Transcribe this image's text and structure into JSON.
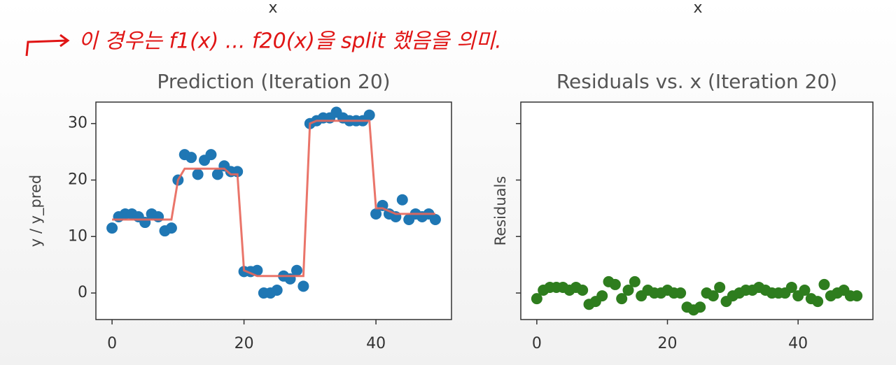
{
  "header": {
    "xlabels": [
      "x",
      "x"
    ]
  },
  "annotation": "이 경우는 f1(x) ... f20(x)을 split 했음을 의미.",
  "chart_data": [
    {
      "type": "scatter",
      "title": "Prediction (Iteration 20)",
      "ylabel": "y / y_pred",
      "x": [
        0,
        1,
        2,
        3,
        4,
        5,
        6,
        7,
        8,
        9,
        10,
        11,
        12,
        13,
        14,
        15,
        16,
        17,
        18,
        19,
        20,
        21,
        22,
        23,
        24,
        25,
        26,
        27,
        28,
        29,
        30,
        31,
        32,
        33,
        34,
        35,
        36,
        37,
        38,
        39,
        40,
        41,
        42,
        43,
        44,
        45,
        46,
        47,
        48,
        49
      ],
      "series": [
        {
          "type": "scatter",
          "color": "#1f77b4",
          "values": [
            11.5,
            13.5,
            14,
            14,
            13.5,
            12.5,
            14,
            13.5,
            11,
            11.5,
            20,
            24.5,
            24,
            21,
            23.5,
            24.5,
            21,
            22.5,
            21.5,
            21.5,
            3.8,
            3.8,
            4,
            0,
            0,
            0.5,
            3,
            2.5,
            4,
            1.2,
            30,
            30.5,
            31,
            31,
            32,
            31,
            30.5,
            30.5,
            30.5,
            31.5,
            14,
            15.5,
            14,
            13.5,
            16.5,
            13,
            14,
            13.5,
            14,
            13
          ]
        },
        {
          "type": "line",
          "color": "#e8665a",
          "values": [
            13,
            13,
            13,
            13,
            13,
            13,
            13,
            13,
            13,
            13,
            20,
            22,
            22,
            22,
            22,
            22,
            22,
            22,
            21,
            21,
            4,
            3.5,
            3,
            3,
            3,
            3,
            3,
            3,
            3,
            3,
            30,
            30.5,
            30.5,
            30.5,
            30.5,
            30.5,
            30.5,
            30.5,
            30.5,
            30.5,
            15,
            15,
            14.5,
            14,
            14,
            14,
            14,
            14,
            14,
            14
          ]
        }
      ],
      "xlim": [
        -2.45,
        51.45
      ],
      "ylim": [
        -4.7,
        33.8
      ],
      "xticks": [
        0,
        20,
        40
      ],
      "yticks": [
        0,
        10,
        20,
        30
      ],
      "ytick_labels": true
    },
    {
      "type": "scatter",
      "title": "Residuals vs. x (Iteration 20)",
      "ylabel": "Residuals",
      "x": [
        0,
        1,
        2,
        3,
        4,
        5,
        6,
        7,
        8,
        9,
        10,
        11,
        12,
        13,
        14,
        15,
        16,
        17,
        18,
        19,
        20,
        21,
        22,
        23,
        24,
        25,
        26,
        27,
        28,
        29,
        30,
        31,
        32,
        33,
        34,
        35,
        36,
        37,
        38,
        39,
        40,
        41,
        42,
        43,
        44,
        45,
        46,
        47,
        48,
        49
      ],
      "series": [
        {
          "type": "scatter",
          "color": "#2e7d1e",
          "values": [
            -1,
            0.5,
            1,
            1,
            1,
            0.5,
            1,
            0.5,
            -2,
            -1.5,
            -0.5,
            2,
            1.5,
            -1,
            0.5,
            2,
            -0.5,
            0.5,
            0,
            0,
            0.5,
            0,
            0,
            -2.5,
            -3,
            -2.5,
            0,
            -0.5,
            1,
            -1.5,
            -0.5,
            0,
            0.5,
            0.5,
            1,
            0.5,
            0,
            0,
            0,
            1,
            -0.5,
            0.5,
            -1,
            -1.5,
            1.5,
            -0.5,
            0,
            0.5,
            -0.5,
            -0.5
          ]
        }
      ],
      "xlim": [
        -2.45,
        51.45
      ],
      "ylim": [
        -4.7,
        33.8
      ],
      "xticks": [
        0,
        20,
        40
      ],
      "yticks": [
        0,
        10,
        20,
        30
      ],
      "ytick_labels": false
    }
  ]
}
